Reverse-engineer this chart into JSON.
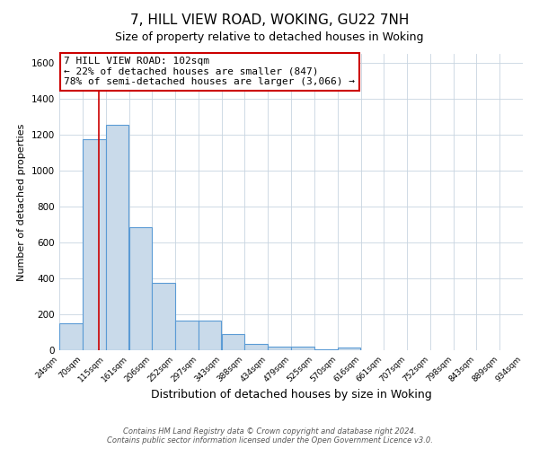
{
  "title": "7, HILL VIEW ROAD, WOKING, GU22 7NH",
  "subtitle": "Size of property relative to detached houses in Woking",
  "xlabel": "Distribution of detached houses by size in Woking",
  "ylabel": "Number of detached properties",
  "bar_left_edges": [
    24,
    70,
    115,
    161,
    206,
    252,
    297,
    343,
    388,
    434,
    479,
    525,
    570,
    616,
    661,
    707,
    752,
    798,
    843,
    889
  ],
  "bar_heights": [
    150,
    1175,
    1255,
    685,
    375,
    165,
    165,
    90,
    35,
    20,
    20,
    5,
    15,
    0,
    0,
    0,
    0,
    0,
    0,
    0
  ],
  "bin_width": 45,
  "bar_color": "#c9daea",
  "bar_edge_color": "#5b9bd5",
  "bar_edge_width": 0.8,
  "property_line_x": 102,
  "property_line_color": "#cc0000",
  "annotation_title": "7 HILL VIEW ROAD: 102sqm",
  "annotation_line1": "← 22% of detached houses are smaller (847)",
  "annotation_line2": "78% of semi-detached houses are larger (3,066) →",
  "annotation_box_color": "#ffffff",
  "annotation_box_edge_color": "#cc0000",
  "ylim": [
    0,
    1650
  ],
  "yticks": [
    0,
    200,
    400,
    600,
    800,
    1000,
    1200,
    1400,
    1600
  ],
  "tick_labels": [
    "24sqm",
    "70sqm",
    "115sqm",
    "161sqm",
    "206sqm",
    "252sqm",
    "297sqm",
    "343sqm",
    "388sqm",
    "434sqm",
    "479sqm",
    "525sqm",
    "570sqm",
    "616sqm",
    "661sqm",
    "707sqm",
    "752sqm",
    "798sqm",
    "843sqm",
    "889sqm",
    "934sqm"
  ],
  "footer_line1": "Contains HM Land Registry data © Crown copyright and database right 2024.",
  "footer_line2": "Contains public sector information licensed under the Open Government Licence v3.0.",
  "background_color": "#ffffff",
  "grid_color": "#c8d4e0",
  "title_fontsize": 11,
  "subtitle_fontsize": 9,
  "annotation_fontsize": 8,
  "ylabel_fontsize": 8,
  "xlabel_fontsize": 9
}
